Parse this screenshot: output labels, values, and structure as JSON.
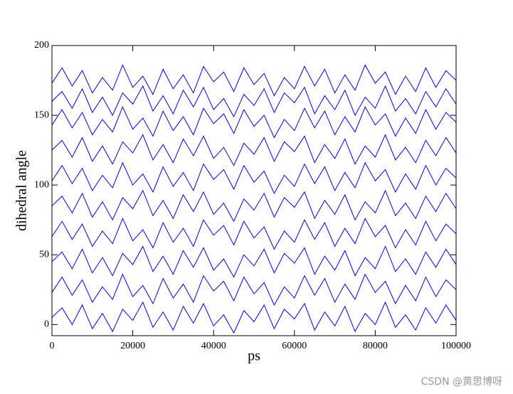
{
  "chart_data": {
    "type": "line",
    "xlabel": "ps",
    "ylabel": "dihedral angle",
    "xlim": [
      0,
      100000
    ],
    "ylim": [
      -8,
      200
    ],
    "xticks": [
      0,
      20000,
      40000,
      60000,
      80000,
      100000
    ],
    "yticks": [
      0,
      50,
      100,
      150,
      200
    ],
    "x": [
      0,
      2500,
      5000,
      7500,
      10000,
      12500,
      15000,
      17500,
      20000,
      22500,
      25000,
      27500,
      30000,
      32500,
      35000,
      37500,
      40000,
      42500,
      45000,
      47500,
      50000,
      52500,
      55000,
      57500,
      60000,
      62500,
      65000,
      67500,
      70000,
      72500,
      75000,
      77500,
      80000,
      82500,
      85000,
      87500,
      90000,
      92500,
      95000,
      97500,
      100000
    ],
    "series": [
      {
        "color": "#0000ff",
        "values": [
          5,
          12,
          0,
          14,
          -3,
          8,
          -5,
          11,
          3,
          16,
          -2,
          9,
          -4,
          13,
          1,
          15,
          -1,
          7,
          -6,
          10,
          2,
          14,
          -3,
          11,
          4,
          15,
          -4,
          9,
          -1,
          13,
          -5,
          8,
          0,
          16,
          -2,
          7,
          -4,
          12,
          1,
          14,
          3
        ]
      },
      {
        "color": "#0000ff",
        "values": [
          23,
          34,
          21,
          32,
          16,
          27,
          18,
          36,
          20,
          28,
          15,
          33,
          19,
          29,
          16,
          35,
          24,
          31,
          17,
          34,
          22,
          30,
          14,
          27,
          19,
          35,
          21,
          33,
          16,
          29,
          18,
          36,
          23,
          31,
          15,
          28,
          17,
          34,
          20,
          32,
          25
        ]
      },
      {
        "color": "#0000ff",
        "values": [
          45,
          52,
          40,
          54,
          37,
          48,
          35,
          51,
          43,
          56,
          38,
          49,
          36,
          53,
          41,
          55,
          39,
          47,
          34,
          50,
          42,
          54,
          37,
          51,
          44,
          55,
          36,
          49,
          39,
          53,
          35,
          48,
          40,
          56,
          38,
          47,
          36,
          52,
          41,
          54,
          43
        ]
      },
      {
        "color": "#0000ff",
        "values": [
          63,
          74,
          61,
          72,
          56,
          67,
          58,
          76,
          60,
          68,
          55,
          73,
          59,
          69,
          56,
          75,
          64,
          71,
          57,
          74,
          62,
          70,
          54,
          67,
          59,
          75,
          61,
          73,
          56,
          69,
          58,
          76,
          63,
          71,
          55,
          68,
          57,
          74,
          60,
          72,
          65
        ]
      },
      {
        "color": "#0000ff",
        "values": [
          85,
          92,
          80,
          94,
          77,
          88,
          75,
          91,
          83,
          96,
          78,
          89,
          76,
          93,
          81,
          95,
          79,
          87,
          74,
          90,
          82,
          94,
          77,
          91,
          84,
          95,
          76,
          89,
          79,
          93,
          75,
          88,
          80,
          96,
          78,
          87,
          76,
          92,
          81,
          94,
          83
        ]
      },
      {
        "color": "#0000ff",
        "values": [
          103,
          114,
          101,
          112,
          96,
          107,
          98,
          116,
          100,
          108,
          95,
          113,
          99,
          109,
          96,
          115,
          104,
          111,
          97,
          114,
          102,
          110,
          94,
          107,
          99,
          115,
          101,
          113,
          96,
          109,
          98,
          116,
          103,
          111,
          95,
          108,
          97,
          114,
          100,
          112,
          105
        ]
      },
      {
        "color": "#0000ff",
        "values": [
          125,
          132,
          120,
          134,
          117,
          128,
          115,
          131,
          123,
          136,
          118,
          129,
          116,
          133,
          121,
          135,
          119,
          127,
          114,
          130,
          122,
          134,
          117,
          131,
          124,
          135,
          116,
          129,
          119,
          133,
          115,
          128,
          120,
          136,
          118,
          127,
          116,
          132,
          121,
          134,
          123
        ]
      },
      {
        "color": "#0000ff",
        "values": [
          143,
          154,
          141,
          152,
          136,
          147,
          138,
          156,
          140,
          148,
          135,
          153,
          139,
          149,
          136,
          155,
          144,
          151,
          137,
          154,
          142,
          150,
          134,
          147,
          139,
          155,
          141,
          153,
          136,
          149,
          138,
          156,
          143,
          151,
          135,
          148,
          137,
          154,
          140,
          152,
          145
        ]
      },
      {
        "color": "#0000ff",
        "values": [
          160,
          167,
          155,
          169,
          152,
          163,
          150,
          166,
          158,
          171,
          153,
          164,
          151,
          168,
          156,
          170,
          154,
          162,
          149,
          165,
          157,
          169,
          152,
          166,
          159,
          170,
          151,
          164,
          154,
          168,
          150,
          163,
          155,
          171,
          153,
          162,
          151,
          167,
          156,
          169,
          158
        ]
      },
      {
        "color": "#0000ff",
        "values": [
          173,
          184,
          171,
          182,
          166,
          177,
          168,
          186,
          170,
          178,
          165,
          183,
          169,
          179,
          166,
          185,
          174,
          181,
          167,
          184,
          172,
          180,
          164,
          177,
          169,
          185,
          171,
          183,
          166,
          179,
          168,
          186,
          173,
          181,
          165,
          178,
          167,
          184,
          170,
          182,
          175
        ]
      }
    ]
  },
  "watermark": "CSDN @黄思博呀"
}
